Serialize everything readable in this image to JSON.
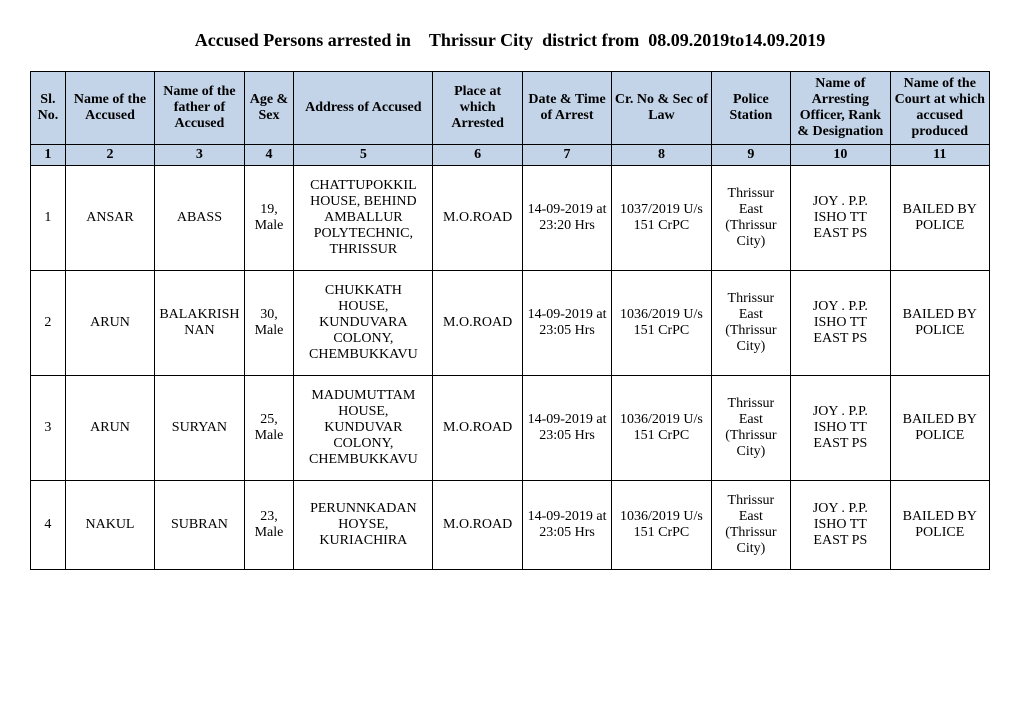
{
  "title": "Accused Persons arrested in    Thrissur City  district from  08.09.2019to14.09.2019",
  "headers": {
    "c1": "Sl. No.",
    "c2": "Name of the Accused",
    "c3": "Name of the father of Accused",
    "c4": "Age & Sex",
    "c5": "Address of Accused",
    "c6": "Place at which Arrested",
    "c7": "Date & Time of Arrest",
    "c8": "Cr. No & Sec of Law",
    "c9": "Police Station",
    "c10": "Name of Arresting Officer, Rank & Designation",
    "c11": "Name of the Court at which accused produced"
  },
  "numrow": {
    "c1": "1",
    "c2": "2",
    "c3": "3",
    "c4": "4",
    "c5": "5",
    "c6": "6",
    "c7": "7",
    "c8": "8",
    "c9": "9",
    "c10": "10",
    "c11": "11"
  },
  "rows": [
    {
      "c1": "1",
      "c2": "ANSAR",
      "c3": "ABASS",
      "c4": "19, Male",
      "c5": "CHATTUPOKKIL HOUSE, BEHIND AMBALLUR POLYTECHNIC, THRISSUR",
      "c6": "M.O.ROAD",
      "c7": "14-09-2019 at 23:20 Hrs",
      "c8": "1037/2019 U/s 151 CrPC",
      "c9": "Thrissur East (Thrissur City)",
      "c10": "JOY . P.P. ISHO TT EAST PS",
      "c11": "BAILED BY POLICE"
    },
    {
      "c1": "2",
      "c2": "ARUN",
      "c3": "BALAKRISHNAN",
      "c4": "30, Male",
      "c5": "CHUKKATH HOUSE, KUNDUVARA COLONY, CHEMBUKKAVU",
      "c6": "M.O.ROAD",
      "c7": "14-09-2019 at 23:05 Hrs",
      "c8": "1036/2019 U/s 151 CrPC",
      "c9": "Thrissur East (Thrissur City)",
      "c10": "JOY . P.P. ISHO TT EAST PS",
      "c11": "BAILED BY POLICE"
    },
    {
      "c1": "3",
      "c2": "ARUN",
      "c3": "SURYAN",
      "c4": "25, Male",
      "c5": "MADUMUTTAM HOUSE, KUNDUVAR COLONY, CHEMBUKKAVU",
      "c6": "M.O.ROAD",
      "c7": "14-09-2019 at 23:05 Hrs",
      "c8": "1036/2019 U/s 151 CrPC",
      "c9": "Thrissur East (Thrissur City)",
      "c10": "JOY . P.P. ISHO TT EAST PS",
      "c11": "BAILED BY POLICE"
    },
    {
      "c1": "4",
      "c2": "NAKUL",
      "c3": "SUBRAN",
      "c4": "23, Male",
      "c5": "PERUNNKADAN HOYSE, KURIACHIRA",
      "c6": "M.O.ROAD",
      "c7": "14-09-2019 at 23:05 Hrs",
      "c8": "1036/2019 U/s 151 CrPC",
      "c9": "Thrissur East (Thrissur City)",
      "c10": "JOY . P.P. ISHO TT EAST PS",
      "c11": "BAILED BY POLICE"
    }
  ]
}
